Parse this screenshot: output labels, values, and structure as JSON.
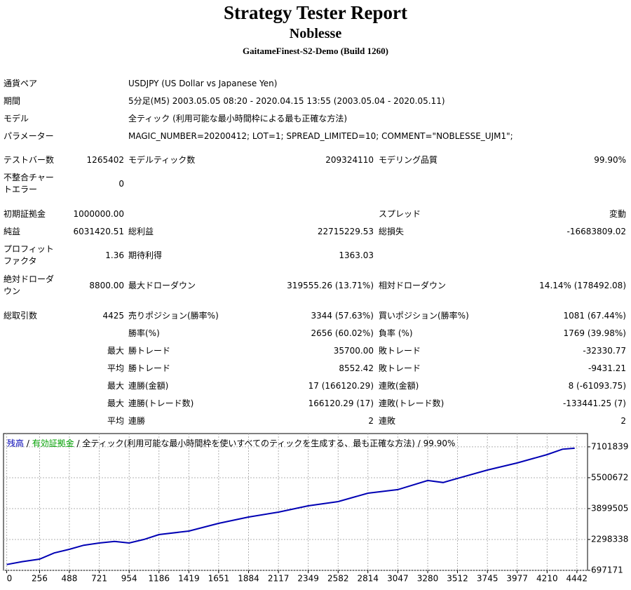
{
  "header": {
    "title": "Strategy Tester Report",
    "subtitle": "Noblesse",
    "server": "GaitameFinest-S2-Demo (Build 1260)"
  },
  "info": [
    {
      "label": "通貨ペア",
      "value": "USDJPY (US Dollar vs Japanese Yen)"
    },
    {
      "label": "期間",
      "value": "5分足(M5) 2003.05.05 08:20 - 2020.04.15 13:55 (2003.05.04 - 2020.05.11)"
    },
    {
      "label": "モデル",
      "value": "全ティック (利用可能な最小時間枠による最も正確な方法)"
    },
    {
      "label": "パラメーター",
      "value": "MAGIC_NUMBER=20200412; LOT=1; SPREAD_LIMITED=10; COMMENT=\"NOBLESSE_UJM1\";"
    }
  ],
  "stats": [
    [
      "テストバー数",
      "1265402",
      "モデルティック数",
      "209324110",
      "モデリング品質",
      "99.90%"
    ],
    [
      "不整合チャートエラー",
      "0",
      null,
      null,
      null,
      null
    ],
    [
      "初期証拠金",
      "1000000.00",
      null,
      null,
      "スプレッド",
      "変動"
    ],
    [
      "純益",
      "6031420.51",
      "総利益",
      "22715229.53",
      "総損失",
      "-16683809.02"
    ],
    [
      "プロフィットファクタ",
      "1.36",
      "期待利得",
      "1363.03",
      null,
      null
    ],
    [
      "絶対ドローダウン",
      "8800.00",
      "最大ドローダウン",
      "319555.26 (13.71%)",
      "相対ドローダウン",
      "14.14% (178492.08)"
    ],
    [
      "総取引数",
      "4425",
      "売りポジション(勝率%)",
      "3344 (57.63%)",
      "買いポジション(勝率%)",
      "1081 (67.44%)"
    ],
    [
      null,
      null,
      "勝率(%)",
      "2656 (60.02%)",
      "負率 (%)",
      "1769 (39.98%)"
    ],
    [
      null,
      "最大",
      "勝トレード",
      "35700.00",
      "敗トレード",
      "-32330.77"
    ],
    [
      null,
      "平均",
      "勝トレード",
      "8552.42",
      "敗トレード",
      "-9431.21"
    ],
    [
      null,
      "最大",
      "連勝(金額)",
      "17 (166120.29)",
      "連敗(金額)",
      "8 (-61093.75)"
    ],
    [
      null,
      "最大",
      "連勝(トレード数)",
      "166120.29 (17)",
      "連敗(トレード数)",
      "-133441.25 (7)"
    ],
    [
      null,
      "平均",
      "連勝",
      "2",
      "連敗",
      "2"
    ]
  ],
  "chart_data": {
    "type": "line",
    "legend": [
      {
        "name": "残高",
        "color": "#0000b4"
      },
      {
        "name": "有効証拠金",
        "color": "#00a000"
      }
    ],
    "note": "全ティック(利用可能な最小時間枠を使いすべてのティックを生成する、最も正確な方法)",
    "quality": "99.90%",
    "x": [
      0,
      120,
      256,
      370,
      488,
      600,
      721,
      840,
      954,
      1070,
      1186,
      1419,
      1651,
      1884,
      2117,
      2349,
      2582,
      2814,
      3047,
      3280,
      3400,
      3512,
      3745,
      3977,
      4210,
      4330,
      4425
    ],
    "series": [
      {
        "name": "残高",
        "color": "#0000b4",
        "values": [
          1000000,
          1150000,
          1280000,
          1600000,
          1790000,
          2000000,
          2115000,
          2200000,
          2115000,
          2300000,
          2553000,
          2735000,
          3135000,
          3463000,
          3717000,
          4045000,
          4263000,
          4700000,
          4882000,
          5355000,
          5250000,
          5464000,
          5900000,
          6265000,
          6700000,
          6980000,
          7031420
        ]
      }
    ],
    "xlim": [
      -25,
      4525
    ],
    "ylim": [
      697171,
      7790000
    ],
    "xticks": [
      0,
      256,
      488,
      721,
      954,
      1186,
      1419,
      1651,
      1884,
      2117,
      2349,
      2582,
      2814,
      3047,
      3280,
      3512,
      3745,
      3977,
      4210,
      4442
    ],
    "yticks": [
      697171,
      2298338,
      3899505,
      5500672,
      7101839
    ],
    "grid": true
  }
}
